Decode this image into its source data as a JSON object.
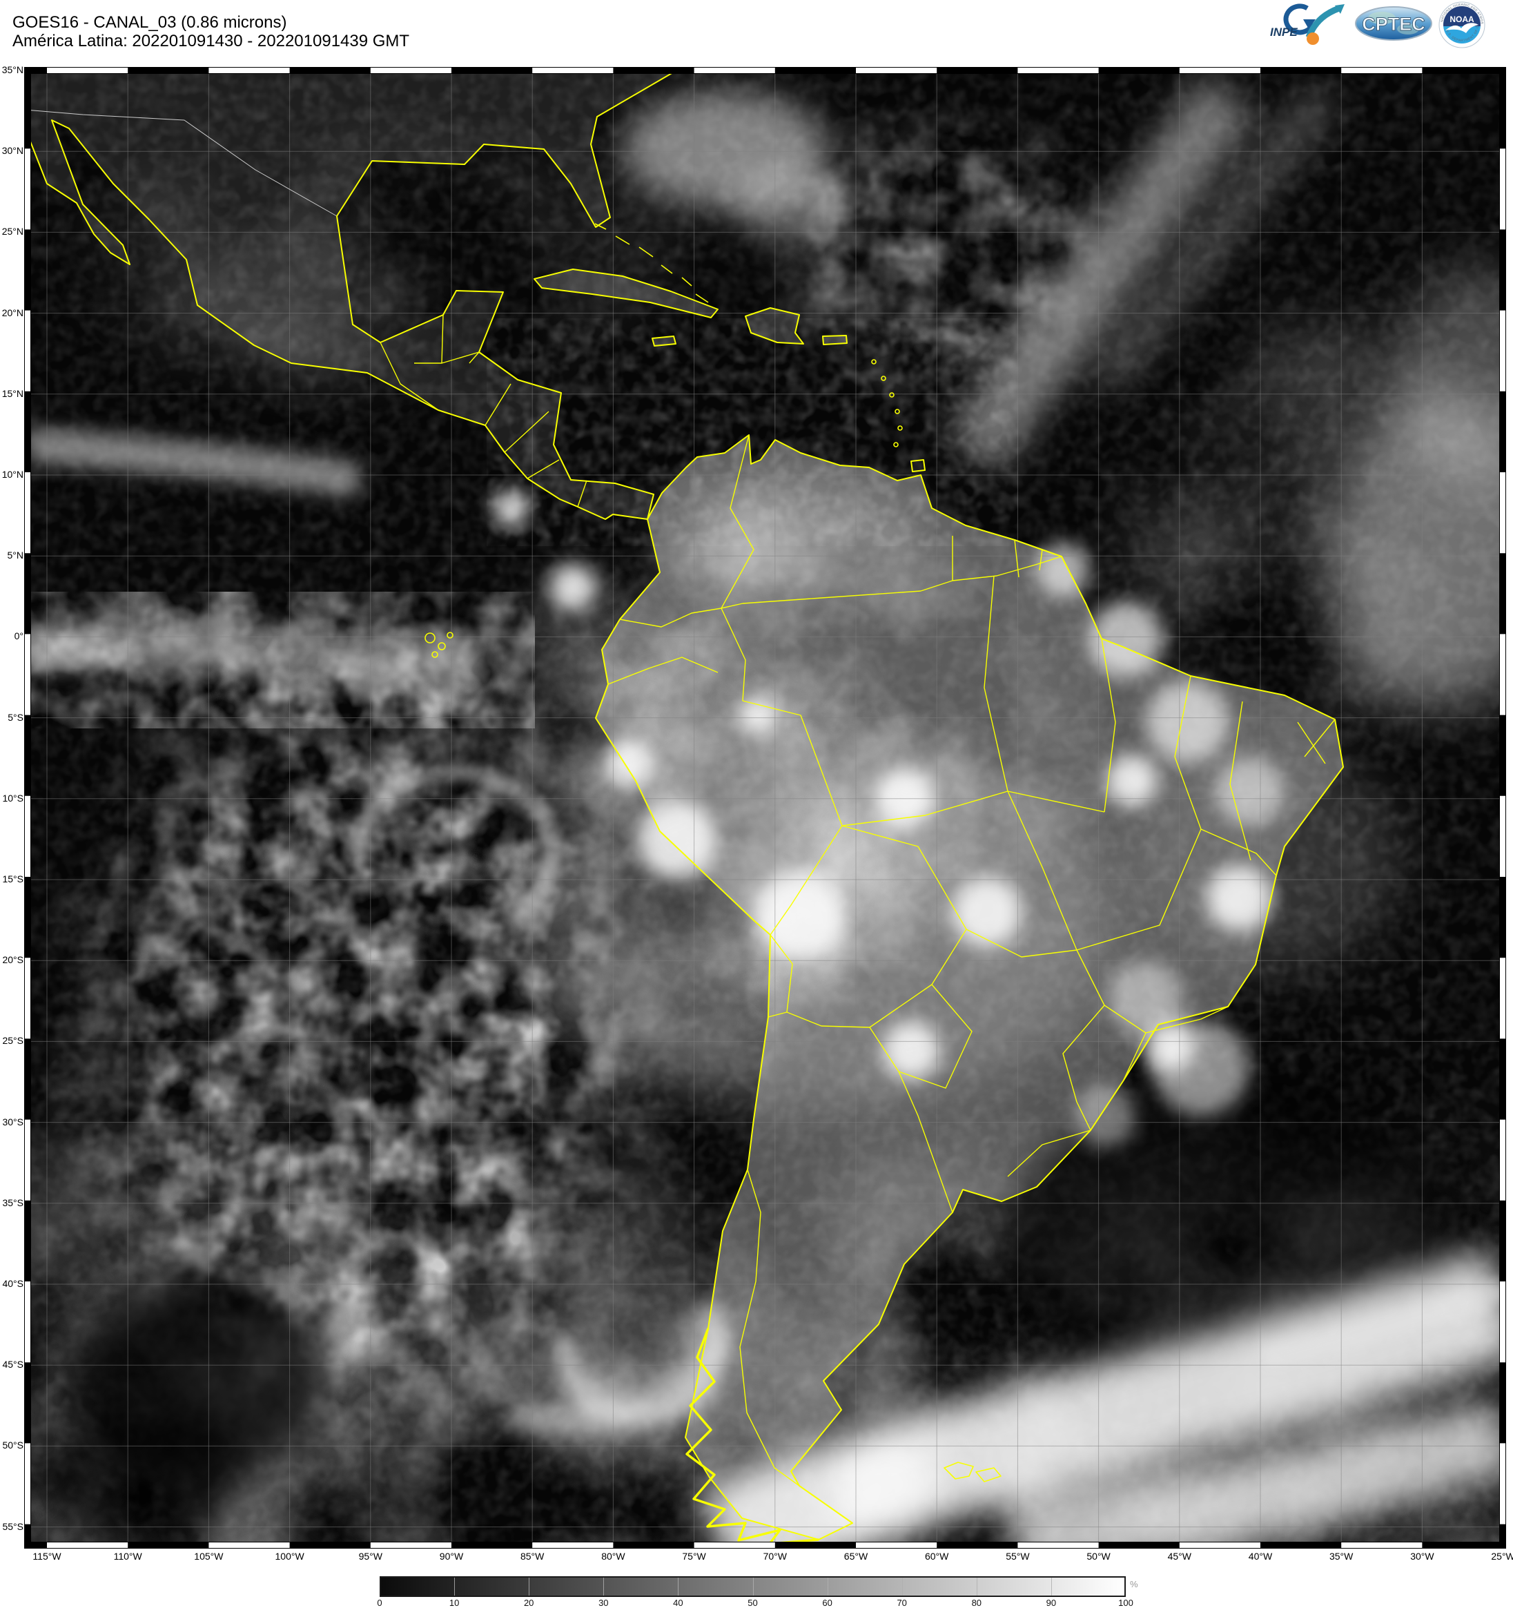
{
  "header": {
    "title_line1": "GOES16 - CANAL_03 (0.86 microns)",
    "title_line2": "América Latina: 202201091430 - 202201091439 GMT"
  },
  "logos": {
    "inpe_label": "INPE",
    "cptec_label": "CPTEC",
    "noaa_label": "NOAA",
    "noaa_ring_top": "NATIONAL OCEANIC AND ATMOSPHERIC ADMINISTRATION",
    "noaa_ring_bottom": "U.S. DEPARTMENT OF COMMERCE"
  },
  "map": {
    "lat_labels": [
      "35°N",
      "30°N",
      "25°N",
      "20°N",
      "15°N",
      "10°N",
      "5°N",
      "0°",
      "5°S",
      "10°S",
      "15°S",
      "20°S",
      "25°S",
      "30°S",
      "35°S",
      "40°S",
      "45°S",
      "50°S",
      "55°S"
    ],
    "lon_labels": [
      "115°W",
      "110°W",
      "105°W",
      "100°W",
      "95°W",
      "90°W",
      "85°W",
      "80°W",
      "75°W",
      "70°W",
      "65°W",
      "60°W",
      "55°W",
      "50°W",
      "45°W",
      "40°W",
      "35°W",
      "30°W",
      "25°W"
    ],
    "border_color": "#f8ff00",
    "grid_color": "#808080"
  },
  "colorbar": {
    "tick_labels": [
      "0",
      "10",
      "20",
      "30",
      "40",
      "50",
      "60",
      "70",
      "80",
      "90",
      "100"
    ],
    "unit": "%",
    "min_color": "#000000",
    "max_color": "#ffffff"
  }
}
